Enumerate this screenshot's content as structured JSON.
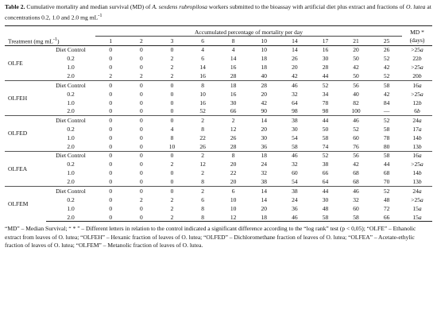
{
  "caption": {
    "label": "Table 2.",
    "text_1": " Cumulative mortality and median survival (MD) of ",
    "species": "A. sexdens rubropilosa",
    "text_2": " workers submitted to the bioassay with artificial diet plus extract and fractions of ",
    "plant": "O. lutea",
    "text_3": " at concentrations 0.2, 1.0 and 2.0 mg mL",
    "sup": "-1"
  },
  "header": {
    "treatment": "Treatment (mg mL",
    "treatment_sup": "-1",
    "treatment_end": ")",
    "accumulated": "Accumulated percentage of mortality per day",
    "md": "MD",
    "md_star": " *",
    "md_days": "(days)",
    "days": [
      "1",
      "2",
      "3",
      "6",
      "8",
      "10",
      "14",
      "17",
      "21",
      "25"
    ]
  },
  "groups": [
    {
      "name": "OLFE",
      "rows": [
        {
          "conc": "Diet Control",
          "v": [
            "0",
            "0",
            "0",
            "4",
            "4",
            "10",
            "14",
            "16",
            "20",
            "26"
          ],
          "md_num": ">25",
          "md_let": "a"
        },
        {
          "conc": "0.2",
          "v": [
            "0",
            "0",
            "2",
            "6",
            "14",
            "18",
            "26",
            "30",
            "50",
            "52"
          ],
          "md_num": "22",
          "md_let": "b"
        },
        {
          "conc": "1.0",
          "v": [
            "0",
            "0",
            "2",
            "14",
            "16",
            "18",
            "20",
            "28",
            "42",
            "42"
          ],
          "md_num": ">25",
          "md_let": "a"
        },
        {
          "conc": "2.0",
          "v": [
            "2",
            "2",
            "2",
            "16",
            "28",
            "40",
            "42",
            "44",
            "50",
            "52"
          ],
          "md_num": "20",
          "md_let": "b"
        }
      ]
    },
    {
      "name": "OLFEH",
      "rows": [
        {
          "conc": "Diet Control",
          "v": [
            "0",
            "0",
            "0",
            "8",
            "18",
            "28",
            "46",
            "52",
            "56",
            "58"
          ],
          "md_num": "16",
          "md_let": "a"
        },
        {
          "conc": "0.2",
          "v": [
            "0",
            "0",
            "0",
            "10",
            "16",
            "20",
            "32",
            "34",
            "40",
            "42"
          ],
          "md_num": ">25",
          "md_let": "a"
        },
        {
          "conc": "1.0",
          "v": [
            "0",
            "0",
            "0",
            "16",
            "30",
            "42",
            "64",
            "78",
            "82",
            "84"
          ],
          "md_num": "12",
          "md_let": "b"
        },
        {
          "conc": "2.0",
          "v": [
            "0",
            "0",
            "0",
            "52",
            "66",
            "90",
            "98",
            "98",
            "100",
            "—"
          ],
          "md_num": "6",
          "md_let": "b"
        }
      ]
    },
    {
      "name": "OLFED",
      "rows": [
        {
          "conc": "Diet Control",
          "v": [
            "0",
            "0",
            "0",
            "2",
            "2",
            "14",
            "38",
            "44",
            "46",
            "52"
          ],
          "md_num": "24",
          "md_let": "a"
        },
        {
          "conc": "0.2",
          "v": [
            "0",
            "0",
            "4",
            "8",
            "12",
            "20",
            "30",
            "50",
            "52",
            "58"
          ],
          "md_num": "17",
          "md_let": "a"
        },
        {
          "conc": "1.0",
          "v": [
            "0",
            "0",
            "8",
            "22",
            "26",
            "30",
            "54",
            "58",
            "60",
            "78"
          ],
          "md_num": "14",
          "md_let": "b"
        },
        {
          "conc": "2.0",
          "v": [
            "0",
            "0",
            "10",
            "26",
            "28",
            "36",
            "58",
            "74",
            "76",
            "80"
          ],
          "md_num": "13",
          "md_let": "b"
        }
      ]
    },
    {
      "name": "OLFEA",
      "rows": [
        {
          "conc": "Diet Control",
          "v": [
            "0",
            "0",
            "0",
            "2",
            "8",
            "18",
            "46",
            "52",
            "56",
            "58"
          ],
          "md_num": "16",
          "md_let": "a"
        },
        {
          "conc": "0.2",
          "v": [
            "0",
            "0",
            "2",
            "12",
            "20",
            "24",
            "32",
            "38",
            "42",
            "44"
          ],
          "md_num": ">25",
          "md_let": "a"
        },
        {
          "conc": "1.0",
          "v": [
            "0",
            "0",
            "0",
            "2",
            "22",
            "32",
            "60",
            "66",
            "68",
            "68"
          ],
          "md_num": "14",
          "md_let": "b"
        },
        {
          "conc": "2.0",
          "v": [
            "0",
            "0",
            "0",
            "8",
            "20",
            "38",
            "54",
            "64",
            "68",
            "70"
          ],
          "md_num": "13",
          "md_let": "b"
        }
      ]
    },
    {
      "name": "OLFEM",
      "rows": [
        {
          "conc": "Diet Control",
          "v": [
            "0",
            "0",
            "0",
            "2",
            "6",
            "14",
            "38",
            "44",
            "46",
            "52"
          ],
          "md_num": "24",
          "md_let": "a"
        },
        {
          "conc": "0.2",
          "v": [
            "0",
            "2",
            "2",
            "6",
            "10",
            "14",
            "24",
            "30",
            "32",
            "48"
          ],
          "md_num": ">25",
          "md_let": "a"
        },
        {
          "conc": "1.0",
          "v": [
            "0",
            "0",
            "2",
            "8",
            "10",
            "20",
            "36",
            "48",
            "60",
            "72"
          ],
          "md_num": "15",
          "md_let": "a"
        },
        {
          "conc": "2.0",
          "v": [
            "0",
            "0",
            "2",
            "8",
            "12",
            "18",
            "46",
            "58",
            "58",
            "66"
          ],
          "md_num": "15",
          "md_let": "a"
        }
      ]
    }
  ],
  "notes": {
    "line1": "“MD” – Median Survival; “ * ” – Different letters in relation to the control indicated a significant difference according to the “log rank” test (p < 0,05); “OLFE” – Ethanolic extract from leaves of O. lutea; “OLFEH” – Hexanic fraction of leaves of O. lutea; “OLFED” – Dichloromethane fraction of leaves of O. lutea; “OLFEA” – Acetate-ethylic fraction of leaves of O. lutea; “OLFEM” – Metanolic fraction of leaves of O. lutea."
  }
}
